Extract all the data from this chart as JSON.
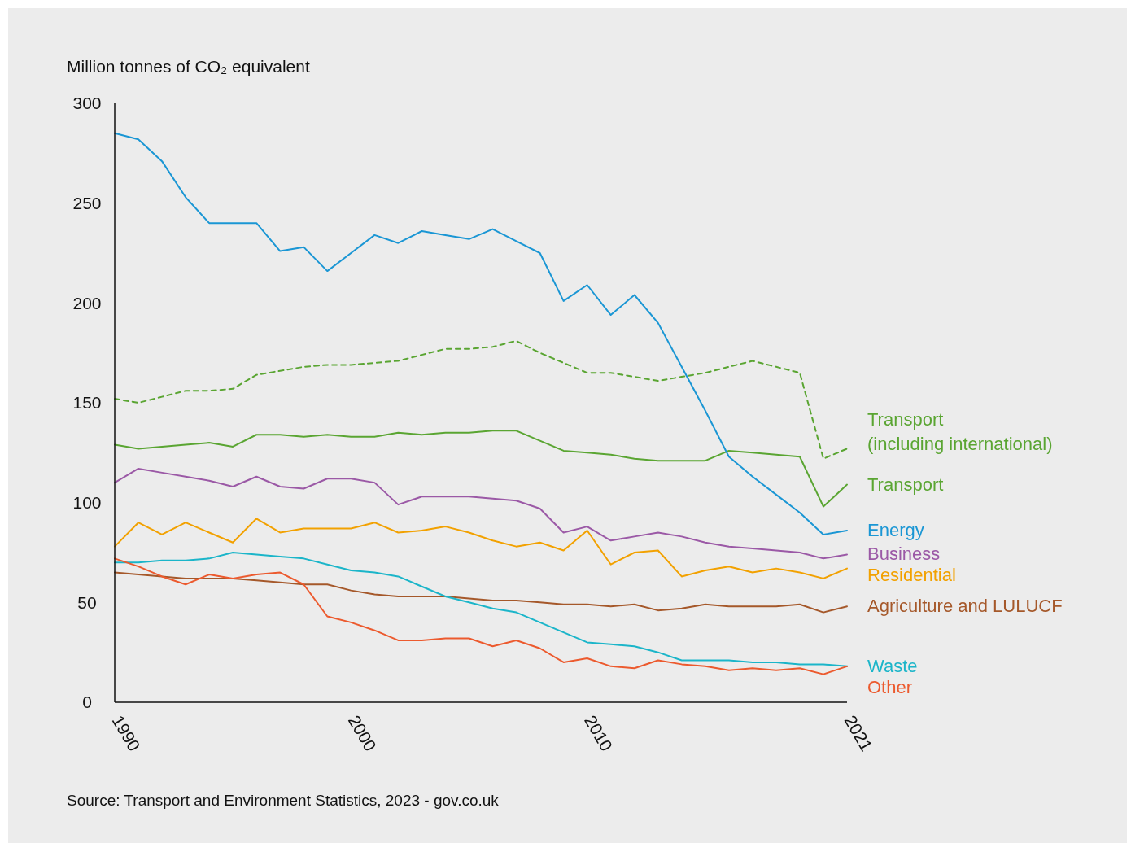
{
  "chart_data": {
    "type": "line",
    "ylabel": "Million tonnes of CO₂ equivalent",
    "annotations": [
      "Source: Transport and Environment Statistics, 2023 - gov.co.uk"
    ],
    "x": [
      1990,
      1991,
      1992,
      1993,
      1994,
      1995,
      1996,
      1997,
      1998,
      1999,
      2000,
      2001,
      2002,
      2003,
      2004,
      2005,
      2006,
      2007,
      2008,
      2009,
      2010,
      2011,
      2012,
      2013,
      2014,
      2015,
      2016,
      2017,
      2018,
      2019,
      2020,
      2021
    ],
    "xlim": [
      1990,
      2021
    ],
    "xticks": [
      1990,
      2000,
      2010,
      2021
    ],
    "ylim": [
      0,
      300
    ],
    "yticks": [
      0,
      50,
      100,
      150,
      200,
      250,
      300
    ],
    "grid": false,
    "series": [
      {
        "name": "Transport (including international)",
        "color": "#5aa532",
        "line_style": "dashed",
        "values": [
          152,
          150,
          153,
          156,
          156,
          157,
          164,
          166,
          168,
          169,
          169,
          170,
          171,
          174,
          177,
          177,
          178,
          181,
          175,
          170,
          165,
          165,
          163,
          161,
          163,
          165,
          168,
          171,
          168,
          165,
          122,
          127
        ]
      },
      {
        "name": "Transport",
        "color": "#5aa532",
        "values": [
          129,
          127,
          128,
          129,
          130,
          128,
          134,
          134,
          133,
          134,
          133,
          133,
          135,
          134,
          135,
          135,
          136,
          136,
          131,
          126,
          125,
          124,
          122,
          121,
          121,
          121,
          126,
          125,
          124,
          123,
          98,
          109
        ]
      },
      {
        "name": "Energy",
        "color": "#1a96d4",
        "values": [
          285,
          282,
          271,
          253,
          240,
          240,
          240,
          226,
          228,
          216,
          225,
          234,
          230,
          236,
          234,
          232,
          237,
          231,
          225,
          201,
          209,
          194,
          204,
          190,
          168,
          146,
          123,
          113,
          104,
          95,
          84,
          86
        ]
      },
      {
        "name": "Business",
        "color": "#9b59a6",
        "values": [
          110,
          117,
          115,
          113,
          111,
          108,
          113,
          108,
          107,
          112,
          112,
          110,
          99,
          103,
          103,
          103,
          102,
          101,
          97,
          85,
          88,
          81,
          83,
          85,
          83,
          80,
          78,
          77,
          76,
          75,
          72,
          74
        ]
      },
      {
        "name": "Residential",
        "color": "#f2a100",
        "values": [
          78,
          90,
          84,
          90,
          85,
          80,
          92,
          85,
          87,
          87,
          87,
          90,
          85,
          86,
          88,
          85,
          81,
          78,
          80,
          76,
          86,
          69,
          75,
          76,
          63,
          66,
          68,
          65,
          67,
          65,
          62,
          67
        ]
      },
      {
        "name": "Agriculture and LULUCF",
        "color": "#a5582a",
        "values": [
          65,
          64,
          63,
          62,
          62,
          62,
          61,
          60,
          59,
          59,
          56,
          54,
          53,
          53,
          53,
          52,
          51,
          51,
          50,
          49,
          49,
          48,
          49,
          46,
          47,
          49,
          48,
          48,
          48,
          49,
          45,
          48
        ]
      },
      {
        "name": "Waste",
        "color": "#1bb5c9",
        "values": [
          70,
          70,
          71,
          71,
          72,
          75,
          74,
          73,
          72,
          69,
          66,
          65,
          63,
          58,
          53,
          50,
          47,
          45,
          40,
          35,
          30,
          29,
          28,
          25,
          21,
          21,
          21,
          20,
          20,
          19,
          19,
          18
        ]
      },
      {
        "name": "Other",
        "color": "#ec5a2e",
        "values": [
          72,
          68,
          63,
          59,
          64,
          62,
          64,
          65,
          59,
          43,
          40,
          36,
          31,
          31,
          32,
          32,
          28,
          31,
          27,
          20,
          22,
          18,
          17,
          21,
          19,
          18,
          16,
          17,
          16,
          17,
          14,
          18
        ]
      }
    ]
  }
}
